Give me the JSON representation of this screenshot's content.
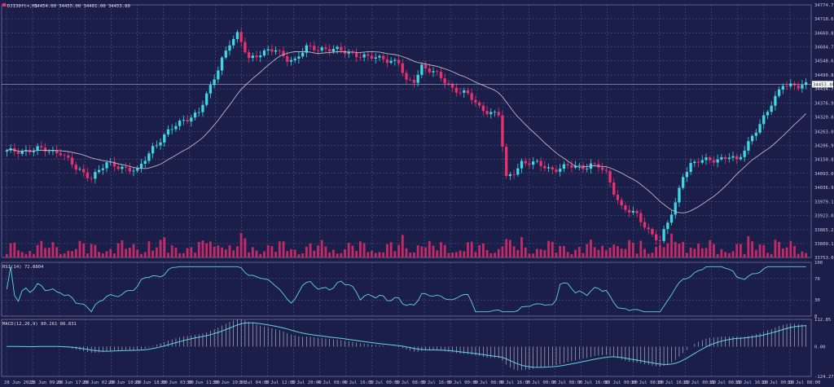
{
  "header": {
    "symbol": "DJI30ft+,H1",
    "ohlc": "34454.00 34455.00 34401.00 34453.80"
  },
  "indicators": {
    "rsi_label": "RSI(14) 72.8804",
    "macd_label": "MACD(12,26,9) 80.261 86.831"
  },
  "colors": {
    "background": "#1b1e48",
    "grid": "#5a5f8e",
    "bull": "#3fd7e4",
    "bear": "#e8316f",
    "ma": "#b8b8c8",
    "rsi_line": "#62d4e8",
    "macd_line": "#62d4e8",
    "macd_hist": "#c9cbd8",
    "volume": "#c42a66"
  },
  "chart_data": [
    {
      "type": "candlestick",
      "name": "price",
      "ylim": [
        33753.0,
        34774.7
      ],
      "y_ticks": [
        "34774.70",
        "34718.60",
        "34660.80",
        "34604.70",
        "34548.60",
        "34490.80",
        "34434.70",
        "34376.90",
        "34320.80",
        "34263.00",
        "34206.90",
        "34150.80",
        "34093.00",
        "34036.90",
        "33979.10",
        "33923.00",
        "33865.20",
        "33809.10",
        "33753.00"
      ],
      "current_price": "34453.80",
      "x_labels": [
        "28 Jun 2023",
        "28 Jun 09:00",
        "28 Jun 17:00",
        "29 Jun 02:00",
        "29 Jun 10:00",
        "29 Jun 18:00",
        "30 Jun 03:00",
        "30 Jun 11:00",
        "30 Jun 19:00",
        "3 Jul 04:00",
        "3 Jul 12:00",
        "3 Jul 20:00",
        "4 Jul 08:00",
        "4 Jul 16:00",
        "5 Jul 00:00",
        "5 Jul 08:00",
        "5 Jul 16:00",
        "6 Jul 00:00",
        "6 Jul 08:00",
        "6 Jul 16:00",
        "7 Jul 00:00",
        "7 Jul 08:00",
        "7 Jul 16:00",
        "10 Jul 00:00",
        "10 Jul 08:00",
        "10 Jul 16:00",
        "11 Jul 00:00",
        "11 Jul 08:00",
        "11 Jul 16:00",
        "12 Jul 00:00",
        "12 Jul 08:00"
      ],
      "anchors": [
        [
          0,
          34180
        ],
        [
          8,
          34190
        ],
        [
          14,
          34180
        ],
        [
          18,
          34110
        ],
        [
          22,
          34080
        ],
        [
          26,
          34130
        ],
        [
          30,
          34120
        ],
        [
          34,
          34100
        ],
        [
          38,
          34200
        ],
        [
          42,
          34260
        ],
        [
          46,
          34310
        ],
        [
          50,
          34340
        ],
        [
          53,
          34440
        ],
        [
          56,
          34560
        ],
        [
          58,
          34620
        ],
        [
          60,
          34650
        ],
        [
          63,
          34560
        ],
        [
          66,
          34580
        ],
        [
          70,
          34590
        ],
        [
          73,
          34560
        ],
        [
          75,
          34550
        ],
        [
          78,
          34600
        ],
        [
          82,
          34600
        ],
        [
          86,
          34590
        ],
        [
          90,
          34580
        ],
        [
          94,
          34560
        ],
        [
          98,
          34560
        ],
        [
          102,
          34540
        ],
        [
          104,
          34460
        ],
        [
          106,
          34470
        ],
        [
          108,
          34530
        ],
        [
          112,
          34490
        ],
        [
          116,
          34440
        ],
        [
          120,
          34410
        ],
        [
          123,
          34360
        ],
        [
          126,
          34340
        ],
        [
          128,
          34330
        ],
        [
          130,
          34070
        ],
        [
          132,
          34100
        ],
        [
          134,
          34140
        ],
        [
          138,
          34130
        ],
        [
          142,
          34110
        ],
        [
          146,
          34120
        ],
        [
          150,
          34120
        ],
        [
          152,
          34130
        ],
        [
          154,
          34120
        ],
        [
          156,
          34090
        ],
        [
          158,
          34020
        ],
        [
          160,
          33960
        ],
        [
          164,
          33920
        ],
        [
          166,
          33880
        ],
        [
          168,
          33850
        ],
        [
          170,
          33820
        ],
        [
          172,
          33890
        ],
        [
          174,
          33970
        ],
        [
          176,
          34090
        ],
        [
          178,
          34130
        ],
        [
          180,
          34140
        ],
        [
          184,
          34150
        ],
        [
          188,
          34160
        ],
        [
          190,
          34140
        ],
        [
          192,
          34190
        ],
        [
          194,
          34250
        ],
        [
          196,
          34290
        ],
        [
          198,
          34340
        ],
        [
          200,
          34400
        ],
        [
          202,
          34460
        ],
        [
          204,
          34450
        ],
        [
          206,
          34440
        ],
        [
          208,
          34450
        ]
      ],
      "candle_count": 209,
      "ma_period": 20
    },
    {
      "type": "bar",
      "name": "volume",
      "note": "tick volume histogram at bottom of price pane"
    },
    {
      "type": "line",
      "name": "RSI(14)",
      "ylim": [
        0,
        100
      ],
      "y_ticks": [
        "100",
        "70",
        "30",
        "0"
      ],
      "last_value": 72.8804
    },
    {
      "type": "line+histogram",
      "name": "MACD(12,26,9)",
      "y_ticks": [
        "112.85",
        "0.00",
        "-124.273"
      ],
      "ylim": [
        -124.273,
        112.85
      ],
      "main": 80.261,
      "signal": 86.831
    }
  ]
}
